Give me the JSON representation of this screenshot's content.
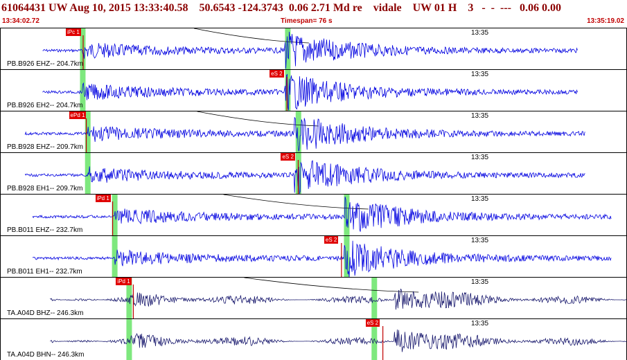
{
  "header": {
    "title": "61064431 UW Aug 10, 2015 13:33:40.58    50.6543 -124.3743  0.06 2.71 Md re    vidale    UW 01 H    3   -  -  ---   0.06 0.00",
    "start_time": "13:34:02.72",
    "timespan": "Timespan=  76 s",
    "end_time": "13:35:19.02"
  },
  "colors": {
    "trace_primary": "#0000e0",
    "trace_secondary": "#1a1a6e",
    "pick_bg": "#e00000",
    "window": "#7ee87e"
  },
  "panels": [
    {
      "station": "PB.B926 EHZ-- 204.7km",
      "time_mark": "13:35",
      "pick": "iPc 1",
      "trace_color": "primary",
      "pick_pos": 0.105,
      "green1": 0.132,
      "green2": 0.459,
      "coda_start": 0.068,
      "coda_end": 0.922,
      "s_big": 0.465
    },
    {
      "station": "PB.B926 EH2-- 204.7km",
      "time_mark": "13:35",
      "pick": "eS 2",
      "trace_color": "primary",
      "pick_pos": 0.43,
      "green1": 0.132,
      "green2": 0.459,
      "coda_start": 0.068,
      "coda_end": 0.922,
      "s_big": 0.465
    },
    {
      "station": "PB.B928 EHZ-- 209.7km",
      "time_mark": "13:35",
      "pick": "ePd 1",
      "trace_color": "primary",
      "pick_pos": 0.11,
      "green1": 0.14,
      "green2": 0.476,
      "coda_start": 0.04,
      "coda_end": 0.933,
      "s_big": 0.48
    },
    {
      "station": "PB.B928 EH1-- 209.7km",
      "time_mark": "13:35",
      "pick": "eS 2",
      "trace_color": "primary",
      "pick_pos": 0.448,
      "green1": 0.14,
      "green2": 0.476,
      "coda_start": 0.04,
      "coda_end": 0.933,
      "s_big": 0.48
    },
    {
      "station": "PB.B011 EHZ-- 232.7km",
      "time_mark": "13:35",
      "pick": "iPd 1",
      "trace_color": "primary",
      "pick_pos": 0.152,
      "green1": 0.183,
      "green2": 0.553,
      "coda_start": 0.052,
      "coda_end": 0.975,
      "s_big": 0.56
    },
    {
      "station": "PB.B011 EH1-- 232.7km",
      "time_mark": "13:35",
      "pick": "eS 2",
      "trace_color": "primary",
      "pick_pos": 0.517,
      "green1": 0.183,
      "green2": 0.553,
      "coda_start": 0.052,
      "coda_end": 0.975,
      "s_big": 0.56
    },
    {
      "station": "TA.A04D BHZ-- 246.3km",
      "time_mark": "13:35",
      "pick": "iPd 1",
      "trace_color": "secondary",
      "pick_pos": 0.185,
      "green1": 0.206,
      "green2": 0.597,
      "coda_start": 0.08,
      "coda_end": 1.0,
      "s_big": 0.64
    },
    {
      "station": "TA.A04D BHN-- 246.3km",
      "time_mark": "13:35",
      "pick": "eS 2",
      "trace_color": "secondary",
      "pick_pos": 0.583,
      "green1": 0.206,
      "green2": 0.597,
      "coda_start": 0.08,
      "coda_end": 1.0,
      "s_big": 0.64
    }
  ]
}
